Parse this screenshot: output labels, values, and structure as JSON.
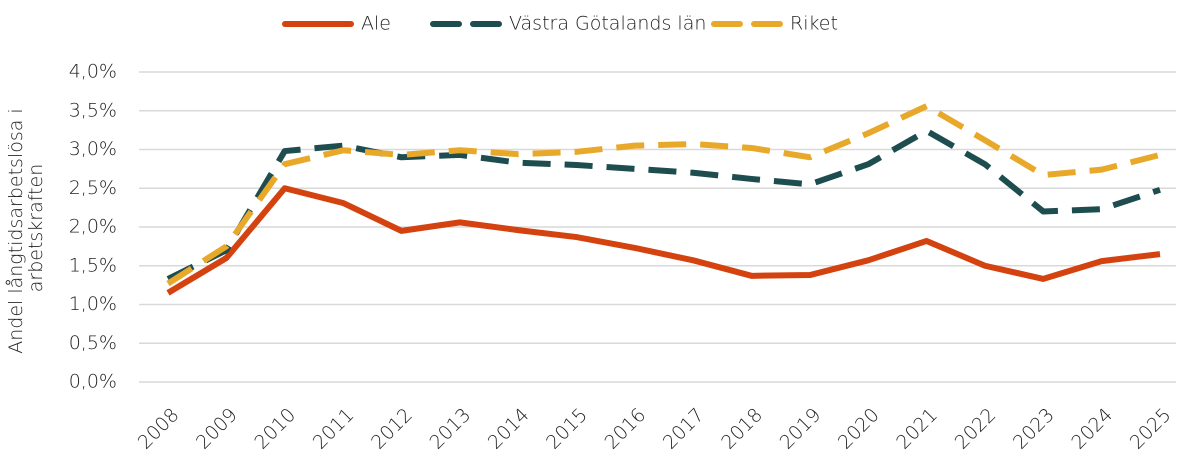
{
  "chart_data": {
    "type": "line",
    "ylabel": [
      "Andel långtidsarbetslösa i",
      "arbetskraften"
    ],
    "categories": [
      "2008",
      "2009",
      "2010",
      "2011",
      "2012",
      "2013",
      "2014",
      "2015",
      "2016",
      "2017",
      "2018",
      "2019",
      "2020",
      "2021",
      "2022",
      "2023",
      "2024",
      "2025"
    ],
    "series": [
      {
        "name": "Ale",
        "color": "#d4420f",
        "dash": "solid",
        "values": [
          1.15,
          1.6,
          2.5,
          2.31,
          1.95,
          2.06,
          1.96,
          1.87,
          1.73,
          1.57,
          1.37,
          1.38,
          1.57,
          1.82,
          1.5,
          1.33,
          1.56,
          1.65
        ]
      },
      {
        "name": "Västra Götalands län",
        "color": "#1e4d4f",
        "dash": "dashed",
        "values": [
          1.33,
          1.7,
          2.98,
          3.05,
          2.9,
          2.93,
          2.83,
          2.8,
          2.75,
          2.7,
          2.62,
          2.55,
          2.81,
          3.24,
          2.81,
          2.2,
          2.23,
          2.48
        ]
      },
      {
        "name": "Riket",
        "color": "#e8a82a",
        "dash": "dashed",
        "values": [
          1.27,
          1.75,
          2.81,
          2.99,
          2.93,
          2.99,
          2.94,
          2.97,
          3.05,
          3.07,
          3.02,
          2.9,
          3.21,
          3.56,
          3.12,
          2.67,
          2.74,
          2.93
        ]
      }
    ],
    "ylim": [
      0,
      4
    ],
    "yticks": [
      {
        "value": 0,
        "label": "0,0%"
      },
      {
        "value": 0.5,
        "label": "0,5%"
      },
      {
        "value": 1,
        "label": "1,0%"
      },
      {
        "value": 1.5,
        "label": "1,5%"
      },
      {
        "value": 2,
        "label": "2,0%"
      },
      {
        "value": 2.5,
        "label": "2,5%"
      },
      {
        "value": 3,
        "label": "3,0%"
      },
      {
        "value": 3.5,
        "label": "3,5%"
      },
      {
        "value": 4,
        "label": "4,0%"
      }
    ],
    "grid": true,
    "legend": "top"
  }
}
